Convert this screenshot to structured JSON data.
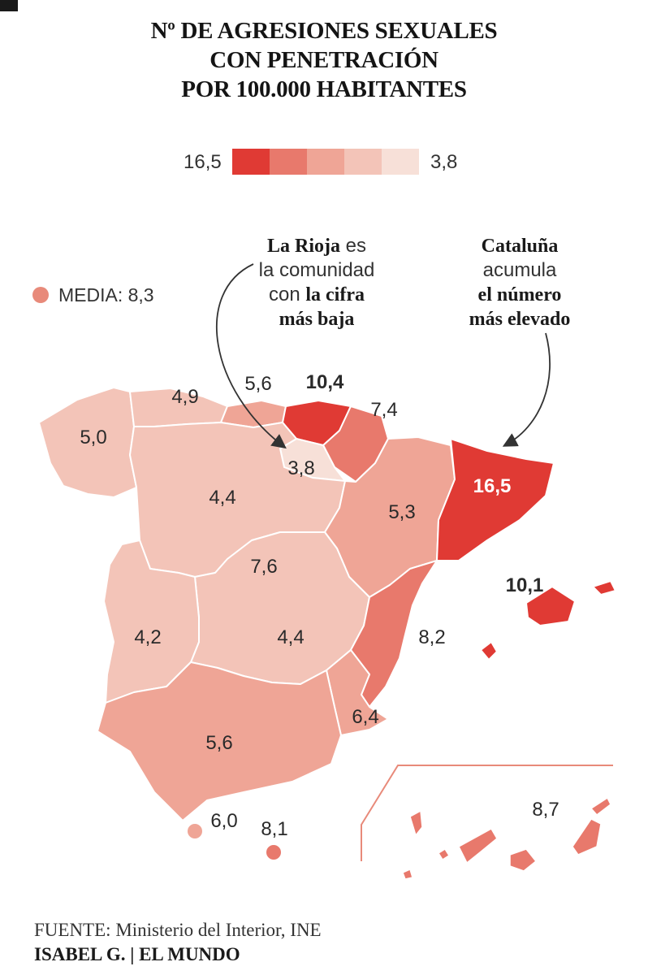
{
  "title": {
    "line1": "Nº DE AGRESIONES SEXUALES",
    "line2": "CON PENETRACIÓN",
    "line3": "POR 100.000 HABITANTES"
  },
  "legend": {
    "max_label": "16,5",
    "min_label": "3,8",
    "colors": [
      "#e03a34",
      "#e8796c",
      "#efa596",
      "#f3c4b8",
      "#f7e0d8"
    ]
  },
  "media": {
    "label": "MEDIA: 8,3",
    "color": "#e88a7a"
  },
  "notes": {
    "rioja": {
      "bold1": "La Rioja",
      "t1": " es",
      "t2": "la comunidad",
      "t3": "con ",
      "bold2": "la cifra",
      "bold3": "más baja"
    },
    "cataluna": {
      "bold1": "Cataluña",
      "t2": "acumula",
      "bold2": "el número",
      "bold3": "más elevado"
    }
  },
  "regions": {
    "galicia": {
      "name": "Galicia",
      "value": "5,0",
      "color": "#f3c4b8"
    },
    "asturias": {
      "name": "Asturias",
      "value": "4,9",
      "color": "#f3c4b8"
    },
    "cantabria": {
      "name": "Cantabria",
      "value": "5,6",
      "color": "#efa596"
    },
    "pais_vasco": {
      "name": "País Vasco",
      "value": "10,4",
      "color": "#e03a34"
    },
    "navarra": {
      "name": "Navarra",
      "value": "7,4",
      "color": "#e8796c"
    },
    "la_rioja": {
      "name": "La Rioja",
      "value": "3,8",
      "color": "#f7e0d8"
    },
    "castilla_leon": {
      "name": "Castilla y León",
      "value": "4,4",
      "color": "#f3c4b8"
    },
    "aragon": {
      "name": "Aragón",
      "value": "5,3",
      "color": "#efa596"
    },
    "cataluna": {
      "name": "Cataluña",
      "value": "16,5",
      "color": "#e03a34"
    },
    "madrid": {
      "name": "Madrid",
      "value": "7,6",
      "color": "#e8796c"
    },
    "castilla_mancha": {
      "name": "Castilla-La Mancha",
      "value": "4,4",
      "color": "#f3c4b8"
    },
    "extremadura": {
      "name": "Extremadura",
      "value": "4,2",
      "color": "#f3c4b8"
    },
    "valencia": {
      "name": "C. Valenciana",
      "value": "8,2",
      "color": "#e8796c"
    },
    "murcia": {
      "name": "Murcia",
      "value": "6,4",
      "color": "#efa596"
    },
    "andalucia": {
      "name": "Andalucía",
      "value": "5,6",
      "color": "#efa596"
    },
    "baleares": {
      "name": "Baleares",
      "value": "10,1",
      "color": "#e03a34"
    },
    "canarias": {
      "name": "Canarias",
      "value": "8,7",
      "color": "#e8796c"
    },
    "ceuta": {
      "name": "Ceuta",
      "value": "6,0",
      "color": "#efa596"
    },
    "melilla": {
      "name": "Melilla",
      "value": "8,1",
      "color": "#e8796c"
    }
  },
  "footer": {
    "source_label": "FUENTE:",
    "source_text": " Ministerio del Interior, INE",
    "author": "ISABEL G.",
    "outlet": "EL MUNDO"
  }
}
